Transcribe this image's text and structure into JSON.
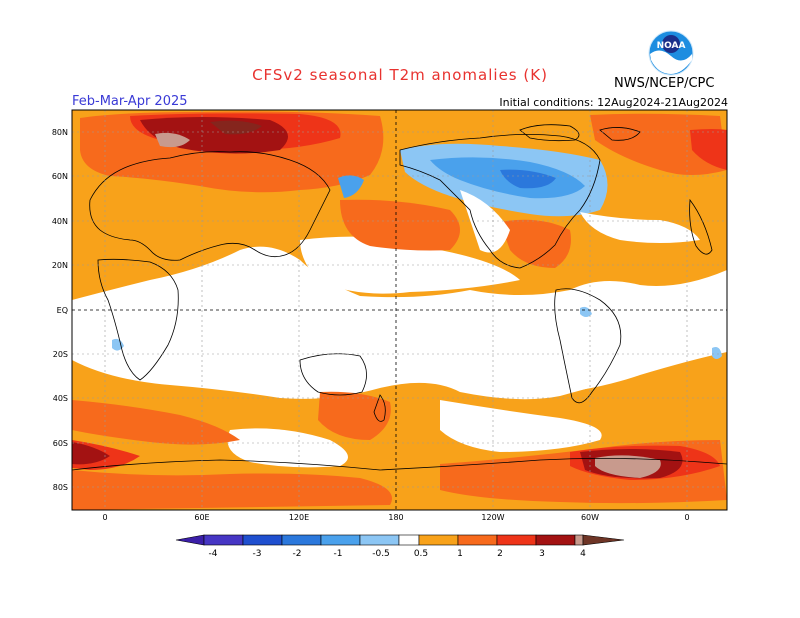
{
  "header": {
    "title": "CFSv2 seasonal T2m anomalies (K)",
    "season": "Feb-Mar-Apr 2025",
    "initial_conditions": "Initial conditions: 12Aug2024-21Aug2024",
    "agency": "NWS/NCEP/CPC",
    "logo_text": "NOAA"
  },
  "map": {
    "lat_labels": [
      "80N",
      "60N",
      "40N",
      "20N",
      "EQ",
      "20S",
      "40S",
      "60S",
      "80S"
    ],
    "lon_labels": [
      "0",
      "60E",
      "120E",
      "180",
      "120W",
      "60W",
      "0"
    ]
  },
  "colorbar": {
    "labels": [
      "-4",
      "-3",
      "-2",
      "-1",
      "-0.5",
      "0.5",
      "1",
      "2",
      "3",
      "4"
    ],
    "colors": {
      "cold_extreme": "#3b1fa8",
      "lt_neg4": "#4636c4",
      "neg4_neg3": "#1f4fcf",
      "neg3_neg2": "#2b78dc",
      "neg2_neg1": "#4aa1ec",
      "neg1_neg05": "#8cc6f4",
      "neutral": "#ffffff",
      "p05_p1": "#f8a21a",
      "p1_p2": "#f76a1c",
      "p2_p3": "#ee3418",
      "p3_p4": "#a31212",
      "gt_p4": "#c89a8d",
      "hot_extreme": "#6e3526"
    }
  }
}
